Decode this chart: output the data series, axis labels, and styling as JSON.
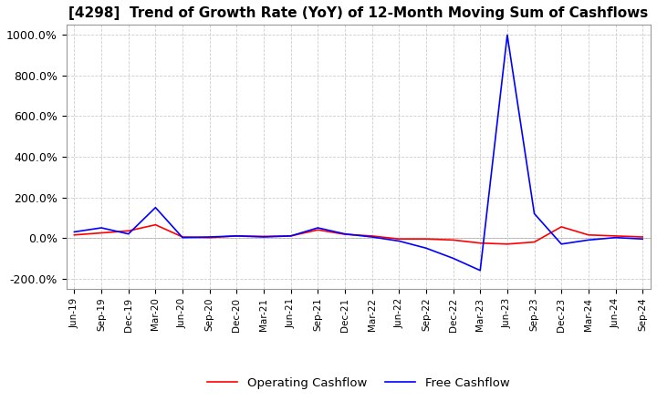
{
  "title": "[4298]  Trend of Growth Rate (YoY) of 12-Month Moving Sum of Cashflows",
  "title_fontsize": 11,
  "ylim": [
    -250,
    1050
  ],
  "yticks": [
    -200,
    0,
    200,
    400,
    600,
    800,
    1000
  ],
  "ytick_labels": [
    "-200.0%",
    "0.0%",
    "200.0%",
    "400.0%",
    "600.0%",
    "800.0%",
    "1000.0%"
  ],
  "legend_labels": [
    "Operating Cashflow",
    "Free Cashflow"
  ],
  "legend_colors": [
    "red",
    "blue"
  ],
  "background_color": "#ffffff",
  "grid_color": "#cccccc",
  "x_labels": [
    "Jun-19",
    "Sep-19",
    "Dec-19",
    "Mar-20",
    "Jun-20",
    "Sep-20",
    "Dec-20",
    "Mar-21",
    "Jun-21",
    "Sep-21",
    "Dec-21",
    "Mar-22",
    "Jun-22",
    "Sep-22",
    "Dec-22",
    "Mar-23",
    "Jun-23",
    "Sep-23",
    "Dec-23",
    "Mar-24",
    "Jun-24",
    "Sep-24"
  ],
  "operating_cashflow": [
    15,
    25,
    35,
    65,
    5,
    2,
    10,
    8,
    10,
    40,
    18,
    10,
    -5,
    -5,
    -10,
    -25,
    -30,
    -20,
    55,
    15,
    10,
    5
  ],
  "free_cashflow": [
    30,
    50,
    20,
    150,
    2,
    5,
    10,
    5,
    10,
    50,
    20,
    5,
    -15,
    -50,
    -100,
    -160,
    1000,
    120,
    -30,
    -10,
    2,
    -5
  ]
}
